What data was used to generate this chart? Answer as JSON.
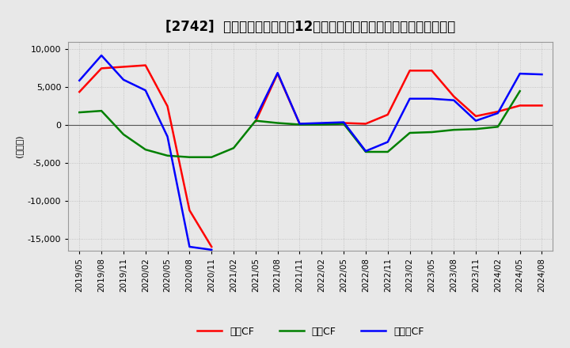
{
  "title": "[2742]  キャッシュフローの12か月移動合計の対前年同期増減額の推移",
  "ylabel": "(百万円)",
  "ylim": [
    -16500,
    11000
  ],
  "yticks": [
    -15000,
    -10000,
    -5000,
    0,
    5000,
    10000
  ],
  "colors": {
    "eigyo": "#ff0000",
    "toshi": "#008000",
    "free": "#0000ff"
  },
  "dates": [
    "2019/05",
    "2019/08",
    "2019/11",
    "2020/02",
    "2020/05",
    "2020/08",
    "2020/11",
    "2021/02",
    "2021/05",
    "2021/08",
    "2021/11",
    "2022/02",
    "2022/05",
    "2022/08",
    "2022/11",
    "2023/02",
    "2023/05",
    "2023/08",
    "2023/11",
    "2024/02",
    "2024/05",
    "2024/08"
  ],
  "eigyo_cf": [
    4400,
    7500,
    7700,
    7900,
    2500,
    -11200,
    -16000,
    null,
    500,
    6800,
    200,
    200,
    300,
    200,
    1400,
    7200,
    7200,
    3800,
    1200,
    1800,
    2600,
    2600
  ],
  "toshi_cf": [
    1700,
    1900,
    -1200,
    -3200,
    -4000,
    -4200,
    -4200,
    -3000,
    600,
    300,
    100,
    100,
    200,
    -3500,
    -3500,
    -1000,
    -900,
    -600,
    -500,
    -200,
    4500,
    null
  ],
  "free_cf": [
    5900,
    9200,
    6000,
    4600,
    -1500,
    -16000,
    -16400,
    null,
    1000,
    6900,
    200,
    300,
    400,
    -3400,
    -2200,
    3500,
    3500,
    3300,
    600,
    1600,
    6800,
    6700
  ],
  "background_color": "#e8e8e8",
  "grid_color": "#bbbbbb",
  "legend_labels": [
    "営業CF",
    "投資CF",
    "フリーCF"
  ],
  "title_fontsize": 12,
  "axis_fontsize": 8,
  "xtick_fontsize": 7.5,
  "legend_fontsize": 9,
  "linewidth": 1.8
}
